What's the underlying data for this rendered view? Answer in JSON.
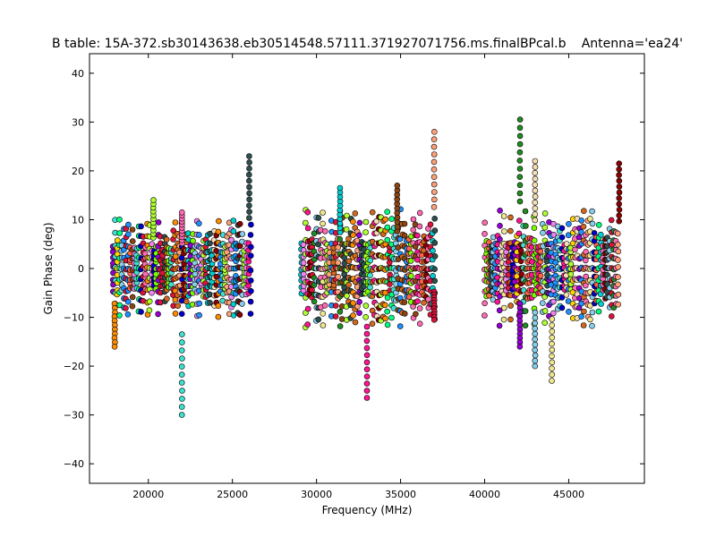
{
  "chart_data": {
    "type": "scatter",
    "title": "B table: 15A-372.sb30143638.eb30514548.57111.371927071756.ms.finalBPcal.b",
    "antenna_label": "Antenna='ea24'",
    "xlabel": "Frequency (MHz)",
    "ylabel": "Gain Phase (deg)",
    "xlim": [
      16500,
      49500
    ],
    "ylim": [
      -44,
      44
    ],
    "xticks": [
      20000,
      25000,
      30000,
      35000,
      40000,
      45000
    ],
    "yticks": [
      -40,
      -30,
      -20,
      -10,
      0,
      10,
      20,
      30,
      40
    ],
    "xtick_labels": [
      "20000",
      "25000",
      "30000",
      "35000",
      "40000",
      "45000"
    ],
    "ytick_labels": [
      "−40",
      "−30",
      "−20",
      "−10",
      "0",
      "10",
      "20",
      "30",
      "40"
    ],
    "grid": false,
    "legend": "none",
    "bands": [
      {
        "x_range": [
          17900,
          26100
        ],
        "typical_range": [
          -10,
          10
        ]
      },
      {
        "x_range": [
          29100,
          37100
        ],
        "typical_range": [
          -12,
          12
        ]
      },
      {
        "x_range": [
          40000,
          48000
        ],
        "typical_range": [
          -12,
          12
        ]
      }
    ],
    "extremes": [
      {
        "x": 18000,
        "y": -16
      },
      {
        "x": 20300,
        "y": 14
      },
      {
        "x": 22000,
        "y": -30
      },
      {
        "x": 22000,
        "y": 11.5
      },
      {
        "x": 26000,
        "y": 23
      },
      {
        "x": 31400,
        "y": 16.5
      },
      {
        "x": 33000,
        "y": -26.5
      },
      {
        "x": 34800,
        "y": 17
      },
      {
        "x": 37000,
        "y": 28
      },
      {
        "x": 37000,
        "y": -10.5
      },
      {
        "x": 42100,
        "y": 30.5
      },
      {
        "x": 42100,
        "y": -16
      },
      {
        "x": 43000,
        "y": 22
      },
      {
        "x": 43000,
        "y": -20
      },
      {
        "x": 44000,
        "y": -23
      },
      {
        "x": 48000,
        "y": 21.5
      }
    ],
    "series_colors": [
      "#ff8c00",
      "#00ced1",
      "#228b22",
      "#8b0000",
      "#1e90ff",
      "#adff2f",
      "#ff1493",
      "#9400d3",
      "#ffd700",
      "#ff6347",
      "#40e0d0",
      "#8b4513",
      "#f5deb3",
      "#0000cd",
      "#7cfc00",
      "#ff69b4",
      "#ffa07a",
      "#87ceeb",
      "#d2691e",
      "#ee82ee",
      "#2f4f4f",
      "#dc143c",
      "#f0e68c",
      "#00ff7f"
    ]
  }
}
